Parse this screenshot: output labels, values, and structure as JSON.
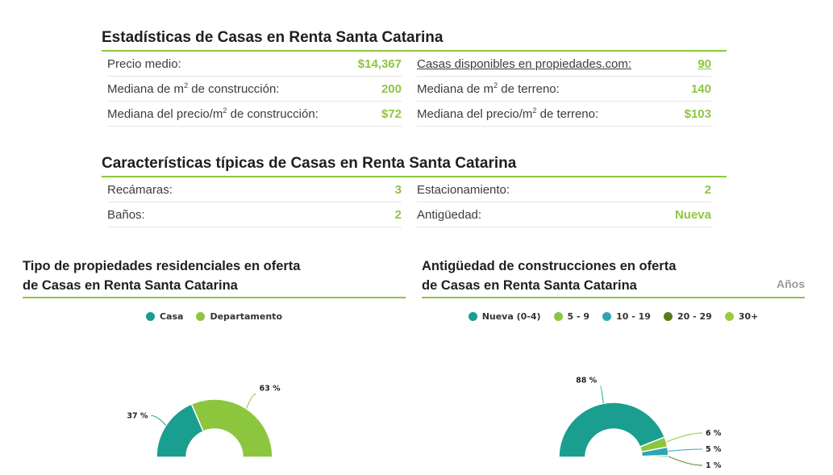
{
  "stats": {
    "title": "Estadísticas de Casas en Renta Santa Catarina",
    "left": [
      {
        "label": "Precio medio:",
        "value": "$14,367"
      },
      {
        "label_pre": "Mediana de m",
        "label_post": " de construcción:",
        "value": "200"
      },
      {
        "label_pre": "Mediana del precio/m",
        "label_post": " de construcción:",
        "value": "$72"
      }
    ],
    "right": [
      {
        "label": "Casas disponibles en propiedades.com:",
        "value": "90"
      },
      {
        "label_pre": "Mediana de m",
        "label_post": " de terreno:",
        "value": "140"
      },
      {
        "label_pre": "Mediana del precio/m",
        "label_post": " de terreno:",
        "value": "$103"
      }
    ],
    "sup": "2"
  },
  "features": {
    "title": "Características típicas de Casas en Renta Santa Catarina",
    "left": [
      {
        "label": "Recámaras:",
        "value": "3"
      },
      {
        "label": "Baños:",
        "value": "2"
      }
    ],
    "right": [
      {
        "label": "Estacionamiento:",
        "value": "2"
      },
      {
        "label": "Antigüedad:",
        "value": "Nueva"
      }
    ]
  },
  "chart_data": [
    {
      "type": "pie",
      "title_line1": "Tipo de propiedades residenciales en oferta",
      "title_line2": "de Casas en Renta Santa Catarina",
      "legend_position": "top",
      "half_donut": true,
      "series": [
        {
          "name": "Casa",
          "value": 37,
          "label": "37 %",
          "color": "#1a9e8f"
        },
        {
          "name": "Departamento",
          "value": 63,
          "label": "63 %",
          "color": "#8cc63f"
        }
      ]
    },
    {
      "type": "pie",
      "title_line1": "Antigüedad de construcciones en oferta",
      "title_line2": "de Casas en Renta Santa Catarina",
      "aside": "Años",
      "legend_position": "top",
      "half_donut": true,
      "series": [
        {
          "name": "Nueva (0-4)",
          "value": 88,
          "label": "88 %",
          "color": "#1a9e8f"
        },
        {
          "name": "5 - 9",
          "value": 6,
          "label": "6 %",
          "color": "#8cc63f"
        },
        {
          "name": "10 - 19",
          "value": 5,
          "label": "5 %",
          "color": "#2aa7b7"
        },
        {
          "name": "20 - 29",
          "value": 1,
          "label": "1 %",
          "color": "#5a7a1e"
        },
        {
          "name": "30+",
          "value": 0,
          "label": "",
          "color": "#9ccc3c"
        }
      ]
    }
  ]
}
